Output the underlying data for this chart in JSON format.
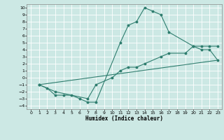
{
  "xlabel": "Humidex (Indice chaleur)",
  "xlim": [
    -0.5,
    23.5
  ],
  "ylim": [
    -4.5,
    10.5
  ],
  "xticks": [
    0,
    1,
    2,
    3,
    4,
    5,
    6,
    7,
    8,
    9,
    10,
    11,
    12,
    13,
    14,
    15,
    16,
    17,
    18,
    19,
    20,
    21,
    22,
    23
  ],
  "yticks": [
    -4,
    -3,
    -2,
    -1,
    0,
    1,
    2,
    3,
    4,
    5,
    6,
    7,
    8,
    9,
    10
  ],
  "line_color": "#2e7d6e",
  "bg_color": "#cce8e4",
  "grid_color": "#ffffff",
  "line1_x": [
    1,
    2,
    3,
    4,
    5,
    6,
    7,
    8,
    11,
    12,
    13,
    14,
    15,
    16,
    17,
    20,
    21,
    22,
    23
  ],
  "line1_y": [
    -1,
    -1.5,
    -2.5,
    -2.5,
    -2.5,
    -3,
    -3.5,
    -3.5,
    5,
    7.5,
    8,
    10,
    9.5,
    9,
    6.5,
    4.5,
    4,
    4,
    2.5
  ],
  "line2_x": [
    1,
    3,
    7,
    8,
    10,
    11,
    12,
    13,
    14,
    16,
    17,
    19,
    20,
    21,
    22,
    23
  ],
  "line2_y": [
    -1,
    -2,
    -3,
    -1,
    0,
    1,
    1.5,
    1.5,
    2,
    3,
    3.5,
    3.5,
    4.5,
    4.5,
    4.5,
    4.5
  ],
  "line3_x": [
    1,
    23
  ],
  "line3_y": [
    -1,
    2.5
  ],
  "figsize": [
    3.2,
    2.0
  ],
  "dpi": 100
}
